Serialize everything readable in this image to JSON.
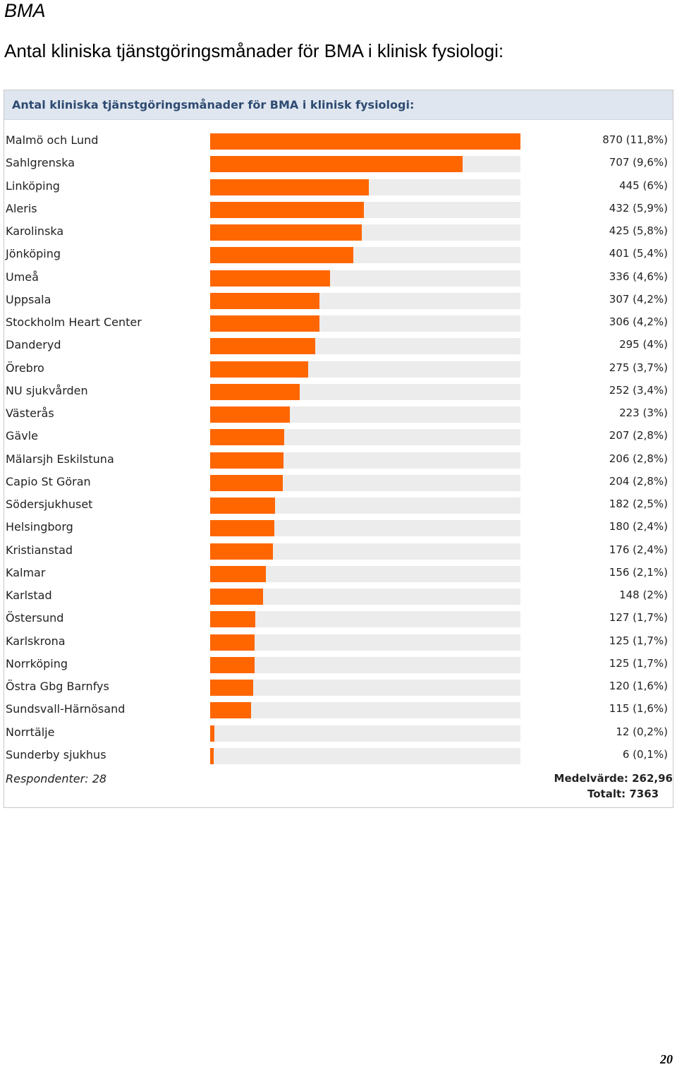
{
  "document": {
    "section": "BMA",
    "heading": "Antal kliniska tjänstgöringsmånader för BMA i klinisk fysiologi:",
    "page_number": "20"
  },
  "chart_data": {
    "type": "bar",
    "orientation": "horizontal",
    "title": "Antal kliniska tjänstgöringsmånader för BMA i klinisk fysiologi:",
    "max_value": 870,
    "bar_color": "#ff6600",
    "track_color": "#ececec",
    "categories": [
      "Malmö och Lund",
      "Sahlgrenska",
      "Linköping",
      "Aleris",
      "Karolinska",
      "Jönköping",
      "Umeå",
      "Uppsala",
      "Stockholm Heart Center",
      "Danderyd",
      "Örebro",
      "NU sjukvården",
      "Västerås",
      "Gävle",
      "Mälarsjh Eskilstuna",
      "Capio St Göran",
      "Södersjukhuset",
      "Helsingborg",
      "Kristianstad",
      "Kalmar",
      "Karlstad",
      "Östersund",
      "Karlskrona",
      "Norrköping",
      "Östra Gbg Barnfys",
      "Sundsvall-Härnösand",
      "Norrtälje",
      "Sunderby sjukhus"
    ],
    "values": [
      870,
      707,
      445,
      432,
      425,
      401,
      336,
      307,
      306,
      295,
      275,
      252,
      223,
      207,
      206,
      204,
      182,
      180,
      176,
      156,
      148,
      127,
      125,
      125,
      120,
      115,
      12,
      6
    ],
    "value_labels": [
      "870 (11,8%)",
      "707 (9,6%)",
      "445 (6%)",
      "432 (5,9%)",
      "425 (5,8%)",
      "401 (5,4%)",
      "336 (4,6%)",
      "307 (4,2%)",
      "306 (4,2%)",
      "295 (4%)",
      "275 (3,7%)",
      "252 (3,4%)",
      "223 (3%)",
      "207 (2,8%)",
      "206 (2,8%)",
      "204 (2,8%)",
      "182 (2,5%)",
      "180 (2,4%)",
      "176 (2,4%)",
      "156 (2,1%)",
      "148 (2%)",
      "127 (1,7%)",
      "125 (1,7%)",
      "125 (1,7%)",
      "120 (1,6%)",
      "115 (1,6%)",
      "12 (0,2%)",
      "6 (0,1%)"
    ],
    "respondents": "Respondenter: 28",
    "mean": "Medelvärde: 262,96",
    "total": "Totalt: 7363"
  }
}
